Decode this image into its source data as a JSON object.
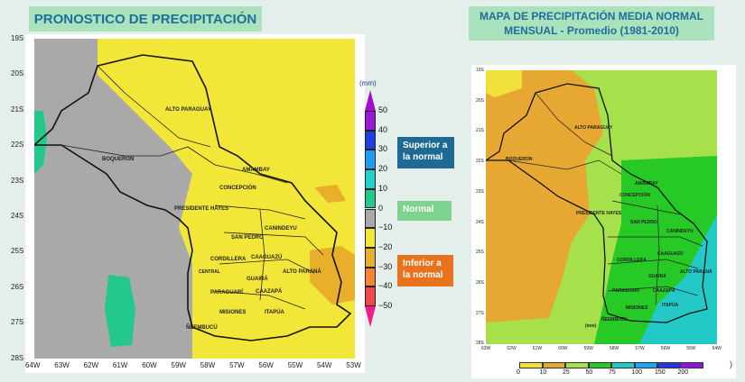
{
  "left": {
    "title": "PRONOSTICO DE PRECIPITACIÓN",
    "lat_ticks": [
      "19S",
      "20S",
      "21S",
      "22S",
      "23S",
      "24S",
      "25S",
      "26S",
      "27S",
      "28S"
    ],
    "lon_ticks": [
      "64W",
      "63W",
      "62W",
      "61W",
      "60W",
      "59W",
      "58W",
      "57W",
      "56W",
      "55W",
      "54W",
      "53W"
    ],
    "departments": [
      "ALTO PARAGUAY",
      "BOQUERON",
      "PRESIDENTE HAYES",
      "CONCEPCIÓN",
      "AMAMBAY",
      "CANINDEYU",
      "SAN PEDRO",
      "CORDILLERA",
      "CAAGUAZÚ",
      "ALTO PARANÁ",
      "GUAIRÁ",
      "CAAZAPÁ",
      "PARAGUARÍ",
      "MISIONES",
      "ITAPÚA",
      "ÑEEMBUCÚ",
      "CENTRAL"
    ],
    "colorbar": {
      "unit": "(mm)",
      "labels": [
        "50",
        "40",
        "30",
        "20",
        "10",
        "0",
        "−10",
        "−20",
        "−30",
        "−40",
        "−50"
      ],
      "colors": [
        "#9a18d8",
        "#1e3fe6",
        "#1a9df5",
        "#1fd0cc",
        "#22c98a",
        "#a9a9a9",
        "#f3e834",
        "#e9ae2a",
        "#f5862f",
        "#f04848"
      ],
      "top_color": "#a10ccf",
      "bottom_color": "#ef1d86"
    },
    "categories": [
      {
        "label": "Superior a la normal",
        "color": "#1e6a94"
      },
      {
        "label": "Normal",
        "color": "#7ed38f"
      },
      {
        "label": "Inferior a la normal",
        "color": "#e8731c"
      }
    ]
  },
  "right": {
    "title_line1": "MAPA DE PRECIPITACIÓN MEDIA NORMAL",
    "title_line2": "MENSUAL - Promedio (1981-2010)",
    "lat_ticks": [
      "19S",
      "20S",
      "21S",
      "22S",
      "23S",
      "24S",
      "25S",
      "26S",
      "27S",
      "28S"
    ],
    "lon_ticks": [
      "63W",
      "62W",
      "61W",
      "60W",
      "59W",
      "58W",
      "57W",
      "56W",
      "55W",
      "54W"
    ],
    "departments": [
      "ALTO PARAGUAY",
      "BOQUERON",
      "PRESIDENTE HAYES",
      "CONCEPCIÓN",
      "AMAMBAY",
      "CANINDEYU",
      "SAN PEDRO",
      "CORDILLERA",
      "CAAGUAZÚ",
      "ALTO PARANÁ",
      "GUAIRÁ",
      "CAAZAPÁ",
      "PARAGUARÍ",
      "MISIONES",
      "ITAPÚA",
      "ÑEEMBUCÚ"
    ],
    "unit_small": "(mm)",
    "colorbar": {
      "labels": [
        "0",
        "10",
        "25",
        "50",
        "75",
        "100",
        "150",
        "200"
      ],
      "colors": [
        "#f1df3a",
        "#e6a832",
        "#a6e04a",
        "#27c927",
        "#22c9c6",
        "#1ea6ef",
        "#2438e0",
        "#8d17d8"
      ]
    },
    "cut_text": ")"
  }
}
